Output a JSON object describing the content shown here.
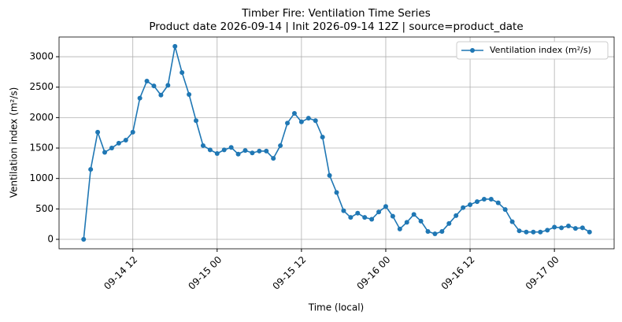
{
  "chart_data": {
    "type": "line",
    "title": "Timber Fire: Ventilation Time Series",
    "subtitle": "Product date 2026-09-14 | Init 2026-09-14 12Z | source=product_date",
    "x_label": "Time (local)",
    "y_label": "Ventilation index (m²/s)",
    "x": [
      "09-14 05",
      "09-14 06",
      "09-14 07",
      "09-14 08",
      "09-14 09",
      "09-14 10",
      "09-14 11",
      "09-14 12",
      "09-14 13",
      "09-14 14",
      "09-14 15",
      "09-14 16",
      "09-14 17",
      "09-14 18",
      "09-14 19",
      "09-14 20",
      "09-14 21",
      "09-14 22",
      "09-14 23",
      "09-15 00",
      "09-15 01",
      "09-15 02",
      "09-15 03",
      "09-15 04",
      "09-15 05",
      "09-15 06",
      "09-15 07",
      "09-15 08",
      "09-15 09",
      "09-15 10",
      "09-15 11",
      "09-15 12",
      "09-15 13",
      "09-15 14",
      "09-15 15",
      "09-15 16",
      "09-15 17",
      "09-15 18",
      "09-15 19",
      "09-15 20",
      "09-15 21",
      "09-15 22",
      "09-15 23",
      "09-16 00",
      "09-16 01",
      "09-16 02",
      "09-16 03",
      "09-16 04",
      "09-16 05",
      "09-16 06",
      "09-16 07",
      "09-16 08",
      "09-16 09",
      "09-16 10",
      "09-16 11",
      "09-16 12",
      "09-16 13",
      "09-16 14",
      "09-16 15",
      "09-16 16",
      "09-16 17",
      "09-16 18",
      "09-16 19",
      "09-16 20",
      "09-16 21",
      "09-16 22",
      "09-16 23",
      "09-17 00",
      "09-17 01",
      "09-17 02",
      "09-17 03",
      "09-17 04",
      "09-17 05"
    ],
    "series": [
      {
        "name": "Ventilation index (m²/s)",
        "color": "#1f77b4",
        "values": [
          0,
          1150,
          1760,
          1430,
          1500,
          1580,
          1630,
          1760,
          2320,
          2600,
          2520,
          2370,
          2530,
          3170,
          2740,
          2380,
          1950,
          1540,
          1470,
          1410,
          1470,
          1510,
          1400,
          1460,
          1420,
          1450,
          1450,
          1330,
          1540,
          1910,
          2070,
          1930,
          1990,
          1950,
          1680,
          1050,
          770,
          470,
          360,
          430,
          360,
          330,
          450,
          540,
          380,
          170,
          280,
          410,
          300,
          130,
          90,
          130,
          260,
          390,
          520,
          570,
          620,
          660,
          660,
          600,
          490,
          290,
          140,
          120,
          120,
          120,
          150,
          200,
          190,
          220,
          180,
          190,
          120
        ]
      }
    ],
    "xlim": [
      "09-14 01:30",
      "09-17 08:30"
    ],
    "xticks": [
      "09-14 12",
      "09-15 00",
      "09-15 12",
      "09-16 00",
      "09-16 12",
      "09-17 00"
    ],
    "ylim": [
      -155,
      3324
    ],
    "yticks": [
      0,
      500,
      1000,
      1500,
      2000,
      2500,
      3000
    ],
    "grid": true,
    "legend": "upper right"
  }
}
